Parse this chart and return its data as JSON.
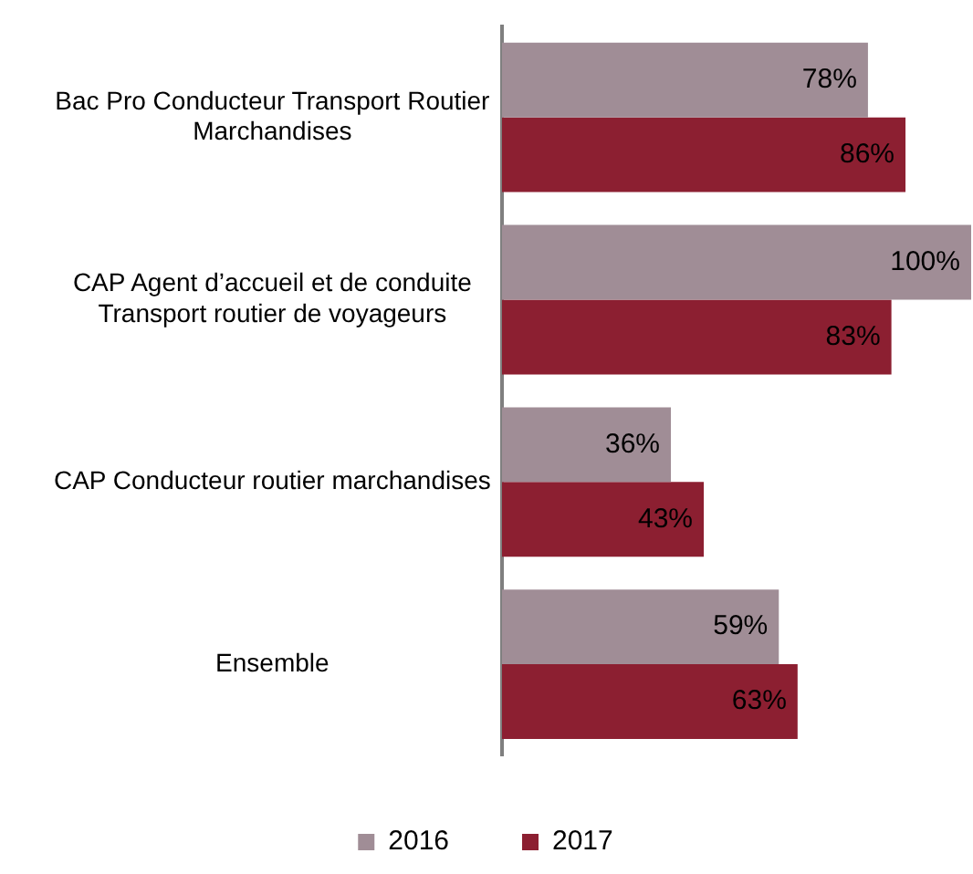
{
  "chart_data": {
    "type": "bar",
    "orientation": "horizontal",
    "categories": [
      "Bac Pro Conducteur Transport Routier Marchandises",
      "CAP Agent d’accueil et de conduite Transport routier de voyageurs",
      "CAP Conducteur routier marchandises",
      "Ensemble"
    ],
    "series": [
      {
        "name": "2016",
        "color": "#a08d96",
        "values": [
          78,
          100,
          36,
          59
        ],
        "value_labels": [
          "78%",
          "100%",
          "36%",
          "59%"
        ]
      },
      {
        "name": "2017",
        "color": "#8c1f31",
        "values": [
          86,
          83,
          43,
          63
        ],
        "value_labels": [
          "86%",
          "83%",
          "43%",
          "63%"
        ]
      }
    ],
    "xlim": [
      0,
      100
    ],
    "tick_labels": "y",
    "grid": false,
    "legend": "bottom"
  }
}
